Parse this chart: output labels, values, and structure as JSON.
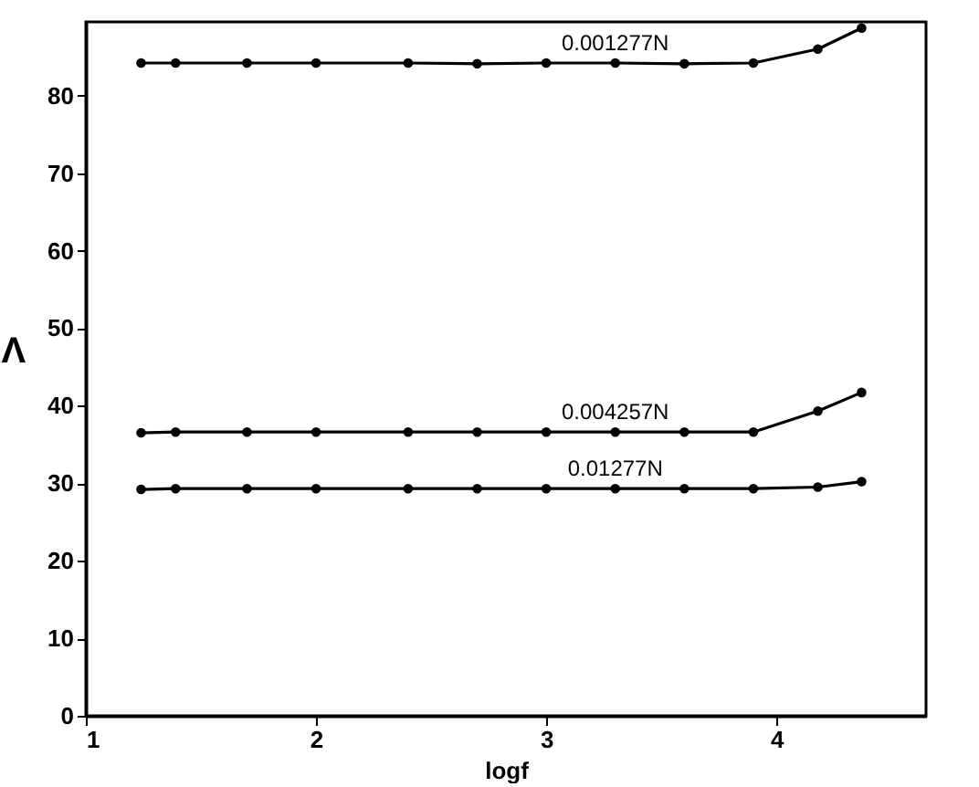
{
  "chart_data": {
    "type": "line",
    "xlabel": "logf",
    "ylabel": "Λ",
    "x": [
      1.24,
      1.39,
      1.7,
      2.0,
      2.4,
      2.7,
      3.0,
      3.3,
      3.6,
      3.9,
      4.18,
      4.37
    ],
    "series": [
      {
        "name": "0.001277N",
        "color": "#000000",
        "values": [
          84.2,
          84.2,
          84.2,
          84.2,
          84.2,
          84.1,
          84.2,
          84.2,
          84.1,
          84.2,
          86.0,
          88.7
        ]
      },
      {
        "name": "0.004257N",
        "color": "#000000",
        "values": [
          36.5,
          36.6,
          36.6,
          36.6,
          36.6,
          36.6,
          36.6,
          36.6,
          36.6,
          36.6,
          39.3,
          41.7
        ]
      },
      {
        "name": "0.01277N",
        "color": "#000000",
        "values": [
          29.2,
          29.3,
          29.3,
          29.3,
          29.3,
          29.3,
          29.3,
          29.3,
          29.3,
          29.3,
          29.5,
          30.2
        ]
      }
    ],
    "xlim": [
      1,
      4.65
    ],
    "ylim": [
      0,
      89.5
    ],
    "xticks": [
      1,
      2,
      3,
      4
    ],
    "yticks": [
      0,
      10,
      20,
      30,
      40,
      50,
      60,
      70,
      80
    ],
    "grid": false,
    "legend": false,
    "marker": "circle",
    "line_style": "solid"
  }
}
